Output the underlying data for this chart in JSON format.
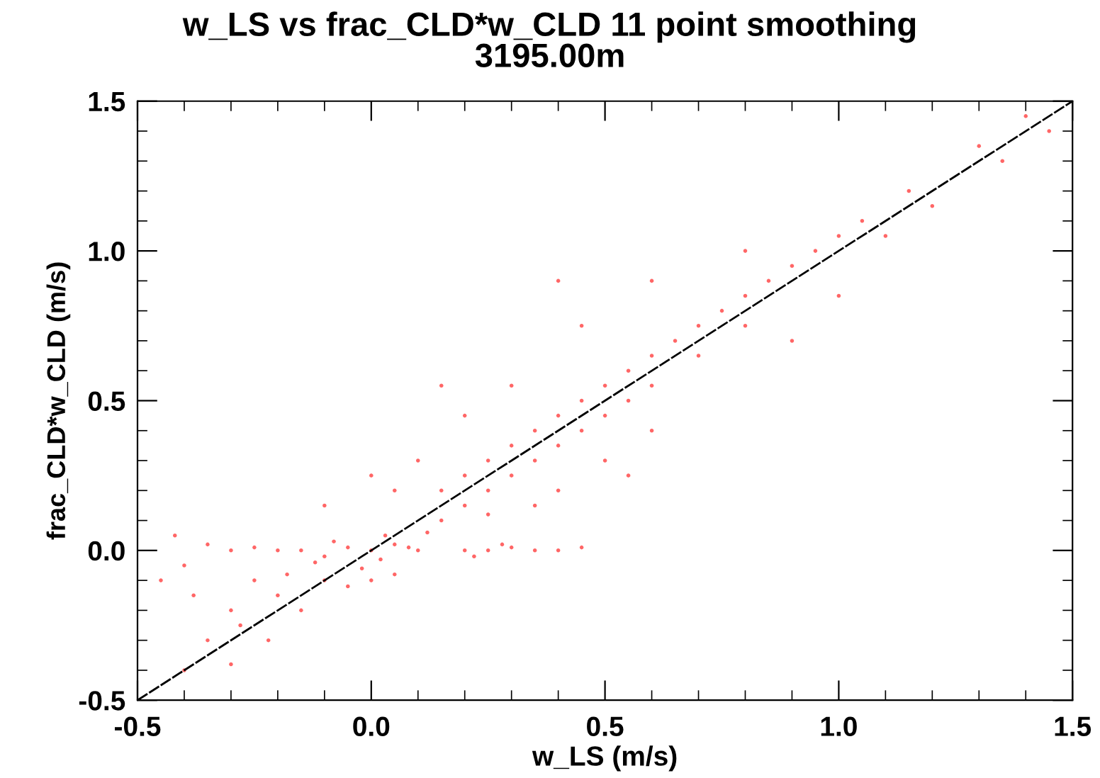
{
  "chart_data": {
    "type": "scatter",
    "title": "w_LS vs frac_CLD*w_CLD 11 point smoothing",
    "subtitle": "3195.00m",
    "xlabel": "w_LS (m/s)",
    "ylabel": "frac_CLD*w_CLD (m/s)",
    "xlim": [
      -0.5,
      1.5
    ],
    "ylim": [
      -0.5,
      1.5
    ],
    "xticks": [
      {
        "value": -0.5,
        "label": "-0.5"
      },
      {
        "value": 0,
        "label": "0.0"
      },
      {
        "value": 0.5,
        "label": "0.5"
      },
      {
        "value": 1,
        "label": "1.0"
      },
      {
        "value": 1.5,
        "label": "1.5"
      }
    ],
    "yticks": [
      {
        "value": -0.5,
        "label": "-0.5"
      },
      {
        "value": 0,
        "label": "0.0"
      },
      {
        "value": 0.5,
        "label": "0.5"
      },
      {
        "value": 1,
        "label": "1.0"
      },
      {
        "value": 1.5,
        "label": "1.5"
      }
    ],
    "grid": false,
    "series": [
      {
        "color": "#ff4040",
        "marker": "circle",
        "x": [
          -0.15,
          -0.1,
          -0.05,
          0,
          0.02,
          0.05,
          0.08,
          0.1,
          -0.08,
          -0.12,
          0.03,
          -0.02,
          0.12,
          0.15,
          -0.2,
          -0.25,
          -0.3,
          -0.35,
          -0.18,
          -0.1,
          -0.05,
          0,
          0.05,
          0.2,
          0.25,
          0.3,
          0.35,
          0.4,
          0.45,
          0.22,
          0.28,
          -0.4,
          -0.45,
          -0.42,
          -0.38,
          -0.3,
          -0.28,
          -0.35,
          -0.25,
          -0.2,
          -0.15,
          -0.4,
          -0.3,
          -0.22,
          0.15,
          0.2,
          0.2,
          0.25,
          0.25,
          0.3,
          0.3,
          0.35,
          0.35,
          0.4,
          0.4,
          0.45,
          0.45,
          0.5,
          0.5,
          0.55,
          0.55,
          0.6,
          0.6,
          0.65,
          0.7,
          0.7,
          0.75,
          0.8,
          0.8,
          0.85,
          0.9,
          0.95,
          1.0,
          1.05,
          1.1,
          1.15,
          1.2,
          1.3,
          1.35,
          1.4,
          1.45,
          0.1,
          0.05,
          0.2,
          0.3,
          0.25,
          0.35,
          0.4,
          0.5,
          0.55,
          0.45,
          0.6,
          0.8,
          0.9,
          0.0,
          -0.1,
          0.15,
          0.6,
          1.0,
          0.4
        ],
        "values": [
          0.0,
          -0.02,
          0.01,
          0,
          -0.03,
          0.02,
          0.01,
          0.0,
          0.03,
          -0.04,
          0.05,
          -0.06,
          0.06,
          0.1,
          0.0,
          0.01,
          0.0,
          0.02,
          -0.08,
          -0.1,
          -0.12,
          -0.1,
          -0.08,
          0.0,
          0.0,
          0.01,
          0.0,
          0.0,
          0.01,
          -0.02,
          0.02,
          -0.05,
          -0.1,
          0.05,
          -0.15,
          -0.2,
          -0.25,
          -0.3,
          -0.1,
          -0.15,
          -0.2,
          -0.4,
          -0.38,
          -0.3,
          0.2,
          0.25,
          0.15,
          0.3,
          0.2,
          0.35,
          0.25,
          0.4,
          0.3,
          0.45,
          0.35,
          0.5,
          0.4,
          0.55,
          0.45,
          0.6,
          0.5,
          0.65,
          0.55,
          0.7,
          0.75,
          0.65,
          0.8,
          0.85,
          0.75,
          0.9,
          0.95,
          1.0,
          1.05,
          1.1,
          1.05,
          1.2,
          1.15,
          1.35,
          1.3,
          1.45,
          1.4,
          0.3,
          0.2,
          0.45,
          0.55,
          0.12,
          0.15,
          0.2,
          0.3,
          0.25,
          0.75,
          0.9,
          1.0,
          0.7,
          0.25,
          0.15,
          0.55,
          0.4,
          0.85,
          0.9
        ]
      },
      {
        "type": "line",
        "color": "#000000",
        "line_style": "dashed",
        "x": [
          -0.5,
          1.5
        ],
        "values": [
          -0.5,
          1.5
        ]
      }
    ]
  }
}
